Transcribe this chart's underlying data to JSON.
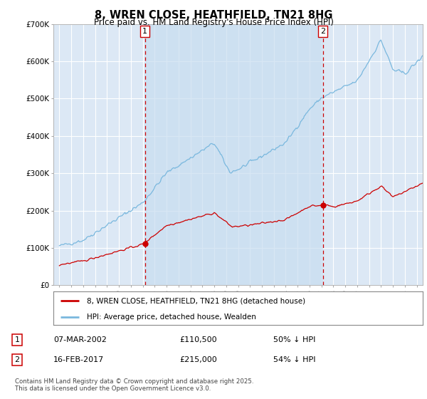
{
  "title": "8, WREN CLOSE, HEATHFIELD, TN21 8HG",
  "subtitle": "Price paid vs. HM Land Registry's House Price Index (HPI)",
  "legend_line1": "8, WREN CLOSE, HEATHFIELD, TN21 8HG (detached house)",
  "legend_line2": "HPI: Average price, detached house, Wealden",
  "footnote": "Contains HM Land Registry data © Crown copyright and database right 2025.\nThis data is licensed under the Open Government Licence v3.0.",
  "table": [
    {
      "num": "1",
      "date": "07-MAR-2002",
      "price": "£110,500",
      "pct": "50% ↓ HPI"
    },
    {
      "num": "2",
      "date": "16-FEB-2017",
      "price": "£215,000",
      "pct": "54% ↓ HPI"
    }
  ],
  "marker1": {
    "year": 2002.18,
    "price": 110500
  },
  "marker2": {
    "year": 2017.12,
    "price": 215000
  },
  "vline1_year": 2002.18,
  "vline2_year": 2017.12,
  "ylim": [
    0,
    700000
  ],
  "yticks": [
    0,
    100000,
    200000,
    300000,
    400000,
    500000,
    600000,
    700000
  ],
  "ytick_labels": [
    "£0",
    "£100K",
    "£200K",
    "£300K",
    "£400K",
    "£500K",
    "£600K",
    "£700K"
  ],
  "xlim": [
    1994.5,
    2025.5
  ],
  "plot_bg_color": "#dce8f5",
  "shade_color": "#c8ddf0",
  "grid_color": "#ffffff",
  "hpi_color": "#7ab8de",
  "price_color": "#cc0000",
  "vline_color": "#cc0000",
  "marker_color": "#cc0000"
}
